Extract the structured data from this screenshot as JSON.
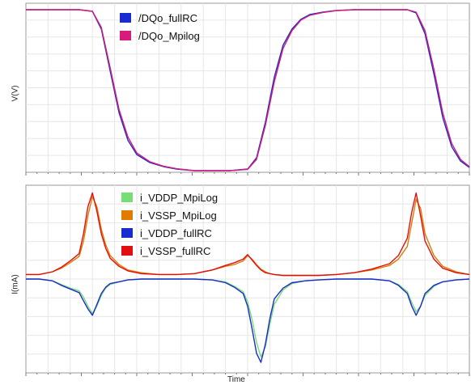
{
  "chart_data": [
    {
      "type": "line",
      "ylabel": "V(V)",
      "xlabel": "",
      "grid": true,
      "legend_position": "top-left",
      "ylim": [
        0,
        1
      ],
      "xlim": [
        0,
        100
      ],
      "series": [
        {
          "name": "/DQo_fullRC",
          "color": "#1a2bd0",
          "x": [
            0,
            12,
            15,
            17,
            19,
            21,
            23,
            25,
            28,
            31,
            34,
            38,
            42,
            46,
            50,
            52,
            54,
            56,
            58,
            60,
            62,
            64,
            67,
            70,
            74,
            78,
            82,
            86,
            88,
            90,
            92,
            94,
            96,
            98,
            100
          ],
          "y": [
            1.0,
            1.0,
            0.99,
            0.88,
            0.62,
            0.36,
            0.19,
            0.1,
            0.05,
            0.025,
            0.01,
            0.0,
            0.0,
            0.0,
            0.01,
            0.08,
            0.3,
            0.58,
            0.78,
            0.88,
            0.94,
            0.97,
            0.985,
            0.995,
            1.0,
            1.0,
            1.0,
            1.0,
            0.98,
            0.85,
            0.6,
            0.33,
            0.15,
            0.06,
            0.02
          ]
        },
        {
          "name": "/DQo_Mpilog",
          "color": "#d81b7a",
          "x": [
            0,
            12,
            15,
            17,
            19,
            21,
            23,
            25,
            28,
            31,
            34,
            38,
            42,
            46,
            50,
            52,
            54,
            56,
            58,
            60,
            62,
            64,
            67,
            70,
            74,
            78,
            82,
            86,
            88,
            90,
            92,
            94,
            96,
            98,
            100
          ],
          "y": [
            1.0,
            1.0,
            0.99,
            0.89,
            0.64,
            0.38,
            0.21,
            0.11,
            0.055,
            0.028,
            0.012,
            0.0,
            0.0,
            0.0,
            0.008,
            0.07,
            0.28,
            0.55,
            0.76,
            0.87,
            0.935,
            0.965,
            0.983,
            0.994,
            1.0,
            1.0,
            1.0,
            1.0,
            0.985,
            0.87,
            0.63,
            0.36,
            0.17,
            0.07,
            0.025
          ]
        }
      ]
    },
    {
      "type": "line",
      "ylabel": "I(mA)",
      "xlabel": "Time",
      "grid": true,
      "legend_position": "top-left",
      "ylim": [
        -1.0,
        1.0
      ],
      "xlim": [
        0,
        100
      ],
      "series": [
        {
          "name": "i_VDDP_MpiLog",
          "color": "#77dd77",
          "x": [
            0,
            3,
            6,
            8,
            10,
            12,
            13,
            14,
            15,
            16,
            17,
            18,
            19,
            21,
            23,
            26,
            30,
            34,
            38,
            42,
            45,
            47,
            49,
            50,
            51,
            52,
            53,
            54,
            55,
            56,
            58,
            60,
            63,
            66,
            70,
            74,
            78,
            82,
            84,
            86,
            87,
            88,
            89,
            90,
            92,
            94,
            97,
            100
          ],
          "y": [
            0.0,
            0.0,
            -0.02,
            -0.06,
            -0.1,
            -0.13,
            -0.2,
            -0.3,
            -0.38,
            -0.3,
            -0.18,
            -0.1,
            -0.06,
            -0.03,
            -0.01,
            0.0,
            0.0,
            0.0,
            0.0,
            -0.01,
            -0.03,
            -0.08,
            -0.14,
            -0.25,
            -0.45,
            -0.7,
            -0.86,
            -0.75,
            -0.5,
            -0.28,
            -0.12,
            -0.05,
            -0.02,
            -0.01,
            0.0,
            0.0,
            0.0,
            -0.02,
            -0.06,
            -0.14,
            -0.26,
            -0.36,
            -0.3,
            -0.18,
            -0.08,
            -0.03,
            -0.01,
            0.0
          ]
        },
        {
          "name": "i_VSSP_MpiLog",
          "color": "#e07b00",
          "x": [
            0,
            3,
            6,
            8,
            10,
            12,
            13,
            14,
            15,
            16,
            17,
            18,
            19,
            21,
            23,
            26,
            30,
            34,
            38,
            42,
            45,
            47,
            49,
            50,
            51,
            52,
            53,
            54,
            55,
            56,
            58,
            60,
            63,
            66,
            70,
            74,
            78,
            82,
            84,
            86,
            87,
            88,
            89,
            90,
            92,
            94,
            97,
            100
          ],
          "y": [
            0.05,
            0.05,
            0.08,
            0.12,
            0.18,
            0.25,
            0.42,
            0.7,
            0.91,
            0.8,
            0.55,
            0.38,
            0.26,
            0.16,
            0.1,
            0.07,
            0.05,
            0.05,
            0.06,
            0.1,
            0.14,
            0.16,
            0.2,
            0.26,
            0.22,
            0.16,
            0.11,
            0.08,
            0.06,
            0.05,
            0.04,
            0.04,
            0.04,
            0.04,
            0.05,
            0.07,
            0.1,
            0.15,
            0.22,
            0.36,
            0.62,
            0.88,
            0.78,
            0.5,
            0.26,
            0.14,
            0.08,
            0.05
          ]
        },
        {
          "name": "i_VDDP_fullRC",
          "color": "#1a2bd0",
          "x": [
            0,
            3,
            6,
            8,
            10,
            12,
            13,
            14,
            15,
            16,
            17,
            18,
            19,
            21,
            23,
            26,
            30,
            34,
            38,
            42,
            45,
            47,
            49,
            50,
            51,
            52,
            53,
            54,
            55,
            56,
            58,
            60,
            63,
            66,
            70,
            74,
            78,
            82,
            84,
            86,
            87,
            88,
            89,
            90,
            92,
            94,
            97,
            100
          ],
          "y": [
            0.0,
            0.0,
            -0.02,
            -0.07,
            -0.11,
            -0.15,
            -0.24,
            -0.33,
            -0.4,
            -0.28,
            -0.16,
            -0.09,
            -0.05,
            -0.03,
            -0.01,
            0.0,
            0.0,
            0.0,
            0.0,
            -0.01,
            -0.04,
            -0.09,
            -0.16,
            -0.3,
            -0.55,
            -0.82,
            -0.92,
            -0.72,
            -0.44,
            -0.22,
            -0.1,
            -0.04,
            -0.02,
            -0.01,
            0.0,
            0.0,
            0.0,
            -0.02,
            -0.07,
            -0.16,
            -0.3,
            -0.4,
            -0.3,
            -0.16,
            -0.07,
            -0.03,
            -0.01,
            0.0
          ]
        },
        {
          "name": "i_VSSP_fullRC",
          "color": "#e01010",
          "x": [
            0,
            3,
            6,
            8,
            10,
            12,
            13,
            14,
            15,
            16,
            17,
            18,
            19,
            21,
            23,
            26,
            30,
            34,
            38,
            42,
            45,
            47,
            49,
            50,
            51,
            52,
            53,
            54,
            55,
            56,
            58,
            60,
            63,
            66,
            70,
            74,
            78,
            82,
            84,
            86,
            87,
            88,
            89,
            90,
            92,
            94,
            97,
            100
          ],
          "y": [
            0.05,
            0.05,
            0.08,
            0.13,
            0.2,
            0.28,
            0.5,
            0.8,
            0.95,
            0.75,
            0.5,
            0.34,
            0.23,
            0.14,
            0.09,
            0.06,
            0.05,
            0.05,
            0.06,
            0.1,
            0.15,
            0.18,
            0.22,
            0.27,
            0.21,
            0.15,
            0.1,
            0.07,
            0.06,
            0.05,
            0.04,
            0.04,
            0.04,
            0.04,
            0.05,
            0.07,
            0.11,
            0.17,
            0.26,
            0.45,
            0.74,
            0.95,
            0.7,
            0.42,
            0.22,
            0.12,
            0.07,
            0.05
          ]
        }
      ]
    }
  ]
}
